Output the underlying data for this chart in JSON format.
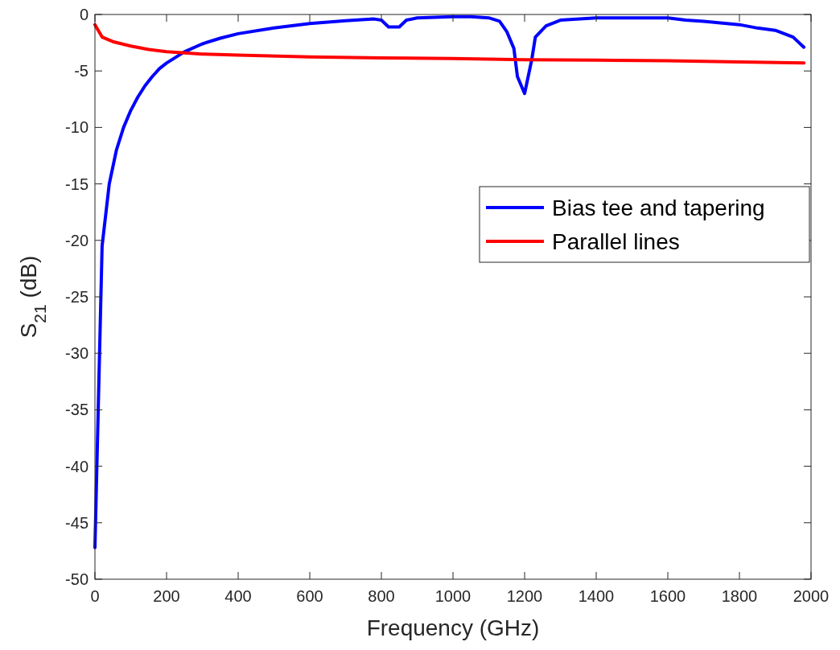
{
  "chart_data": {
    "type": "line",
    "xlabel": "Frequency (GHz)",
    "ylabel": "S$_{21}$ (dB)",
    "xlim": [
      0,
      2000
    ],
    "ylim": [
      -50,
      0
    ],
    "xticks": [
      0,
      200,
      400,
      600,
      800,
      1000,
      1200,
      1400,
      1600,
      1800,
      2000
    ],
    "yticks": [
      -50,
      -45,
      -40,
      -35,
      -30,
      -25,
      -20,
      -15,
      -10,
      -5,
      0
    ],
    "grid": false,
    "legend": "right",
    "series": [
      {
        "name": "Bias tee and tapering",
        "color": "#0000ff",
        "x": [
          0,
          20,
          40,
          60,
          80,
          100,
          120,
          140,
          160,
          180,
          200,
          250,
          300,
          350,
          400,
          500,
          600,
          700,
          780,
          800,
          820,
          850,
          870,
          900,
          1000,
          1050,
          1100,
          1130,
          1150,
          1170,
          1180,
          1200,
          1220,
          1230,
          1260,
          1300,
          1400,
          1500,
          1600,
          1650,
          1700,
          1800,
          1850,
          1900,
          1950,
          1980
        ],
        "values": [
          -47.2,
          -20.5,
          -15,
          -12,
          -10,
          -8.5,
          -7.3,
          -6.3,
          -5.5,
          -4.8,
          -4.3,
          -3.3,
          -2.6,
          -2.1,
          -1.7,
          -1.2,
          -0.8,
          -0.55,
          -0.4,
          -0.5,
          -1.1,
          -1.1,
          -0.5,
          -0.3,
          -0.2,
          -0.2,
          -0.3,
          -0.6,
          -1.5,
          -3,
          -5.5,
          -7,
          -4,
          -2,
          -1,
          -0.5,
          -0.3,
          -0.3,
          -0.3,
          -0.5,
          -0.6,
          -0.9,
          -1.2,
          -1.4,
          -2,
          -2.9
        ]
      },
      {
        "name": "Parallel lines",
        "color": "#ff0000",
        "x": [
          0,
          20,
          50,
          100,
          150,
          200,
          300,
          400,
          600,
          800,
          1000,
          1200,
          1400,
          1600,
          1800,
          1980
        ],
        "values": [
          -0.9,
          -2,
          -2.4,
          -2.8,
          -3.1,
          -3.3,
          -3.5,
          -3.6,
          -3.75,
          -3.85,
          -3.9,
          -4,
          -4.05,
          -4.1,
          -4.2,
          -4.3
        ]
      }
    ]
  }
}
